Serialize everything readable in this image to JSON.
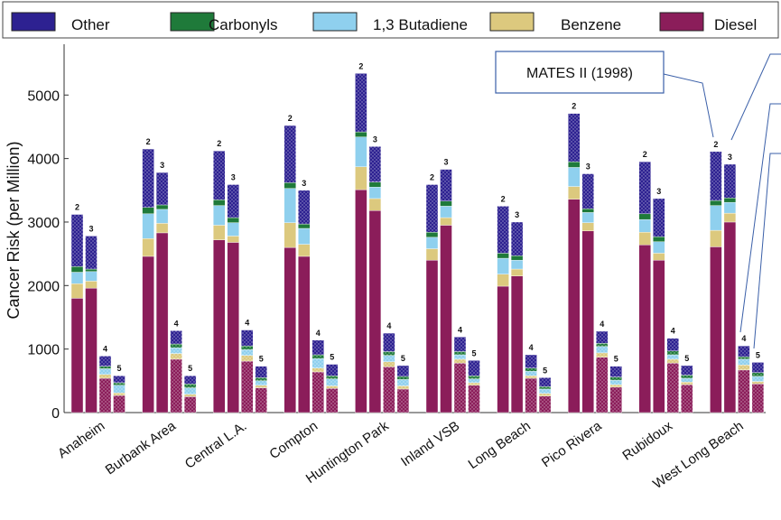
{
  "chart_data": {
    "type": "bar",
    "stacked": true,
    "ylabel": "Cancer Risk (per Million)",
    "ylim": [
      0,
      5800
    ],
    "yticks": [
      0,
      1000,
      2000,
      3000,
      4000,
      5000
    ],
    "legend_position": "top",
    "stack_order": [
      "Diesel",
      "Benzene",
      "1,3 Butadiene",
      "Carbonyls",
      "Other"
    ],
    "legend_entries": [
      "Other",
      "Carbonyls",
      "1,3 Butadiene",
      "Benzene",
      "Diesel"
    ],
    "colors": {
      "Other": "#2d2191",
      "Carbonyls": "#1f7a3a",
      "1,3 Butadiene": "#8fd0ee",
      "Benzene": "#dcc97e",
      "Diesel": "#8b1d5a"
    },
    "annotation": "MATES II (1998)",
    "annotation_icon": "callout-box",
    "sites": [
      {
        "name": "Anaheim",
        "bars": [
          {
            "label": "2",
            "Diesel": 1800,
            "Benzene": 230,
            "1,3 Butadiene": 180,
            "Carbonyls": 90,
            "Other": 820
          },
          {
            "label": "3",
            "Diesel": 1960,
            "Benzene": 110,
            "1,3 Butadiene": 150,
            "Carbonyls": 40,
            "Other": 520
          },
          {
            "label": "4",
            "Diesel": 540,
            "Benzene": 60,
            "1,3 Butadiene": 90,
            "Carbonyls": 40,
            "Other": 160
          },
          {
            "label": "5",
            "Diesel": 270,
            "Benzene": 40,
            "1,3 Butadiene": 120,
            "Carbonyls": 40,
            "Other": 110
          }
        ]
      },
      {
        "name": "Burbank Area",
        "bars": [
          {
            "label": "2",
            "Diesel": 2460,
            "Benzene": 280,
            "1,3 Butadiene": 390,
            "Carbonyls": 100,
            "Other": 920
          },
          {
            "label": "3",
            "Diesel": 2830,
            "Benzene": 150,
            "1,3 Butadiene": 220,
            "Carbonyls": 70,
            "Other": 510
          },
          {
            "label": "4",
            "Diesel": 840,
            "Benzene": 90,
            "1,3 Butadiene": 90,
            "Carbonyls": 60,
            "Other": 210
          },
          {
            "label": "5",
            "Diesel": 250,
            "Benzene": 40,
            "1,3 Butadiene": 100,
            "Carbonyls": 60,
            "Other": 130
          }
        ]
      },
      {
        "name": "Central L.A.",
        "bars": [
          {
            "label": "2",
            "Diesel": 2720,
            "Benzene": 230,
            "1,3 Butadiene": 310,
            "Carbonyls": 90,
            "Other": 770
          },
          {
            "label": "3",
            "Diesel": 2680,
            "Benzene": 100,
            "1,3 Butadiene": 210,
            "Carbonyls": 80,
            "Other": 520
          },
          {
            "label": "4",
            "Diesel": 810,
            "Benzene": 90,
            "1,3 Butadiene": 90,
            "Carbonyls": 60,
            "Other": 250
          },
          {
            "label": "5",
            "Diesel": 390,
            "Benzene": 40,
            "1,3 Butadiene": 70,
            "Carbonyls": 50,
            "Other": 180
          }
        ]
      },
      {
        "name": "Compton",
        "bars": [
          {
            "label": "2",
            "Diesel": 2600,
            "Benzene": 390,
            "1,3 Butadiene": 540,
            "Carbonyls": 90,
            "Other": 900
          },
          {
            "label": "3",
            "Diesel": 2460,
            "Benzene": 190,
            "1,3 Butadiene": 250,
            "Carbonyls": 70,
            "Other": 530
          },
          {
            "label": "4",
            "Diesel": 640,
            "Benzene": 60,
            "1,3 Butadiene": 150,
            "Carbonyls": 60,
            "Other": 230
          },
          {
            "label": "5",
            "Diesel": 380,
            "Benzene": 40,
            "1,3 Butadiene": 110,
            "Carbonyls": 50,
            "Other": 180
          }
        ]
      },
      {
        "name": "Huntington Park",
        "bars": [
          {
            "label": "2",
            "Diesel": 3510,
            "Benzene": 360,
            "1,3 Butadiene": 470,
            "Carbonyls": 80,
            "Other": 920
          },
          {
            "label": "3",
            "Diesel": 3180,
            "Benzene": 190,
            "1,3 Butadiene": 180,
            "Carbonyls": 80,
            "Other": 560
          },
          {
            "label": "4",
            "Diesel": 720,
            "Benzene": 80,
            "1,3 Butadiene": 100,
            "Carbonyls": 60,
            "Other": 290
          },
          {
            "label": "5",
            "Diesel": 370,
            "Benzene": 50,
            "1,3 Butadiene": 100,
            "Carbonyls": 50,
            "Other": 170
          }
        ]
      },
      {
        "name": "Inland VSB",
        "bars": [
          {
            "label": "2",
            "Diesel": 2400,
            "Benzene": 180,
            "1,3 Butadiene": 180,
            "Carbonyls": 80,
            "Other": 750
          },
          {
            "label": "3",
            "Diesel": 2950,
            "Benzene": 120,
            "1,3 Butadiene": 180,
            "Carbonyls": 80,
            "Other": 500
          },
          {
            "label": "4",
            "Diesel": 780,
            "Benzene": 60,
            "1,3 Butadiene": 70,
            "Carbonyls": 50,
            "Other": 230
          },
          {
            "label": "5",
            "Diesel": 430,
            "Benzene": 40,
            "1,3 Butadiene": 60,
            "Carbonyls": 50,
            "Other": 240
          }
        ]
      },
      {
        "name": "Long Beach",
        "bars": [
          {
            "label": "2",
            "Diesel": 1990,
            "Benzene": 190,
            "1,3 Butadiene": 250,
            "Carbonyls": 80,
            "Other": 740
          },
          {
            "label": "3",
            "Diesel": 2150,
            "Benzene": 110,
            "1,3 Butadiene": 140,
            "Carbonyls": 70,
            "Other": 530
          },
          {
            "label": "4",
            "Diesel": 540,
            "Benzene": 40,
            "1,3 Butadiene": 70,
            "Carbonyls": 50,
            "Other": 210
          },
          {
            "label": "5",
            "Diesel": 260,
            "Benzene": 40,
            "1,3 Butadiene": 70,
            "Carbonyls": 40,
            "Other": 140
          }
        ]
      },
      {
        "name": "Pico Rivera",
        "bars": [
          {
            "label": "2",
            "Diesel": 3360,
            "Benzene": 200,
            "1,3 Butadiene": 300,
            "Carbonyls": 90,
            "Other": 760
          },
          {
            "label": "3",
            "Diesel": 2860,
            "Benzene": 130,
            "1,3 Butadiene": 160,
            "Carbonyls": 60,
            "Other": 550
          },
          {
            "label": "4",
            "Diesel": 870,
            "Benzene": 70,
            "1,3 Butadiene": 100,
            "Carbonyls": 50,
            "Other": 190
          },
          {
            "label": "5",
            "Diesel": 400,
            "Benzene": 40,
            "1,3 Butadiene": 70,
            "Carbonyls": 50,
            "Other": 170
          }
        ]
      },
      {
        "name": "Rubidoux",
        "bars": [
          {
            "label": "2",
            "Diesel": 2640,
            "Benzene": 200,
            "1,3 Butadiene": 200,
            "Carbonyls": 90,
            "Other": 820
          },
          {
            "label": "3",
            "Diesel": 2400,
            "Benzene": 110,
            "1,3 Butadiene": 180,
            "Carbonyls": 80,
            "Other": 600
          },
          {
            "label": "4",
            "Diesel": 780,
            "Benzene": 60,
            "1,3 Butadiene": 70,
            "Carbonyls": 60,
            "Other": 200
          },
          {
            "label": "5",
            "Diesel": 440,
            "Benzene": 40,
            "1,3 Butadiene": 60,
            "Carbonyls": 50,
            "Other": 150
          }
        ]
      },
      {
        "name": "West Long Beach",
        "bars": [
          {
            "label": "2",
            "Diesel": 2610,
            "Benzene": 260,
            "1,3 Butadiene": 390,
            "Carbonyls": 80,
            "Other": 770
          },
          {
            "label": "3",
            "Diesel": 3000,
            "Benzene": 140,
            "1,3 Butadiene": 170,
            "Carbonyls": 70,
            "Other": 530
          },
          {
            "label": "4",
            "Diesel": 670,
            "Benzene": 80,
            "1,3 Butadiene": 90,
            "Carbonyls": 40,
            "Other": 170
          },
          {
            "label": "5",
            "Diesel": 450,
            "Benzene": 40,
            "1,3 Butadiene": 80,
            "Carbonyls": 60,
            "Other": 160
          }
        ]
      }
    ]
  }
}
